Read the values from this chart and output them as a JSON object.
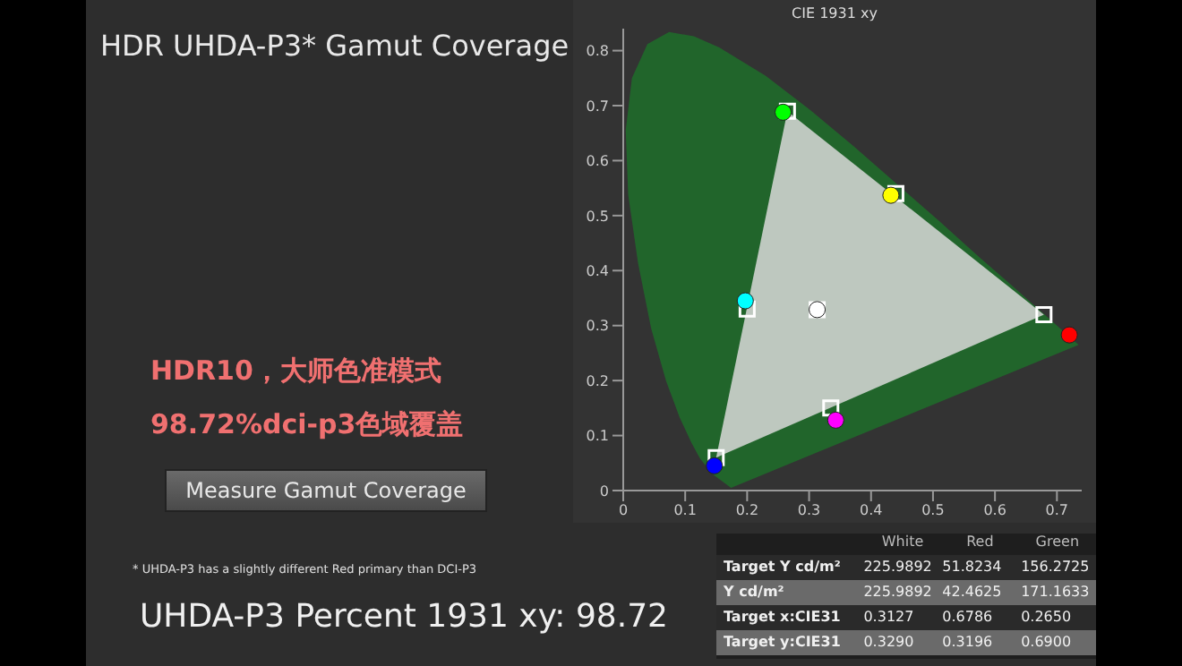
{
  "chart_data": {
    "type": "scatter",
    "title": "HDR UHDA-P3* Gamut Coverage",
    "subtitle": "CIE 1931 xy",
    "xlim": [
      0,
      0.74
    ],
    "ylim": [
      0,
      0.84
    ],
    "xticks": [
      0,
      0.1,
      0.2,
      0.3,
      0.4,
      0.5,
      0.6,
      0.7
    ],
    "yticks": [
      0,
      0.1,
      0.2,
      0.3,
      0.4,
      0.5,
      0.6,
      0.7,
      0.8
    ],
    "series": [
      {
        "type": "area",
        "color": "#1f6e2a",
        "x": [
          0.174,
          0.144,
          0.124,
          0.11,
          0.091,
          0.069,
          0.045,
          0.024,
          0.008,
          0.004,
          0.014,
          0.039,
          0.074,
          0.114,
          0.155,
          0.23,
          0.302,
          0.373,
          0.444,
          0.513,
          0.575,
          0.627,
          0.692,
          0.735
        ],
        "values": [
          0.005,
          0.03,
          0.058,
          0.087,
          0.133,
          0.2,
          0.295,
          0.413,
          0.538,
          0.655,
          0.75,
          0.812,
          0.834,
          0.826,
          0.806,
          0.754,
          0.692,
          0.625,
          0.555,
          0.487,
          0.424,
          0.373,
          0.308,
          0.265
        ]
      },
      {
        "type": "area",
        "color": "#d9d9d9",
        "x": [
          0.265,
          0.679,
          0.15
        ],
        "values": [
          0.69,
          0.32,
          0.06
        ]
      },
      {
        "type": "scatter",
        "marker": "square",
        "color": "#ffffff",
        "x": [
          0.313,
          0.679,
          0.265,
          0.15,
          0.2,
          0.335,
          0.44
        ],
        "values": [
          0.329,
          0.32,
          0.69,
          0.06,
          0.33,
          0.15,
          0.54
        ]
      },
      {
        "type": "scatter",
        "marker": "circle",
        "colors": [
          "#ffffff",
          "#ff0000",
          "#00ff00",
          "#0000ff",
          "#00ffff",
          "#ff00ff",
          "#ffff00"
        ],
        "x": [
          0.313,
          0.72,
          0.258,
          0.147,
          0.197,
          0.343,
          0.432
        ],
        "values": [
          0.329,
          0.283,
          0.688,
          0.045,
          0.345,
          0.128,
          0.537
        ]
      }
    ],
    "annotations": [
      "HDR10，大师色准模式",
      "98.72%dci-p3色域覆盖",
      "Measure Gamut Coverage",
      "* UHDA-P3 has a slightly different Red primary than DCI-P3",
      "UHDA-P3 Percent 1931 xy: 98.72",
      "White",
      "Red",
      "Green",
      "Target Y cd/m²",
      "225.9892",
      "51.8234",
      "156.2725",
      "Y cd/m²",
      "225.9892",
      "42.4625",
      "171.1633",
      "Target x:CIE31",
      "0.3127",
      "0.6786",
      "0.2650",
      "Target y:CIE31",
      "0.3290",
      "0.3196",
      "0.6900"
    ]
  }
}
